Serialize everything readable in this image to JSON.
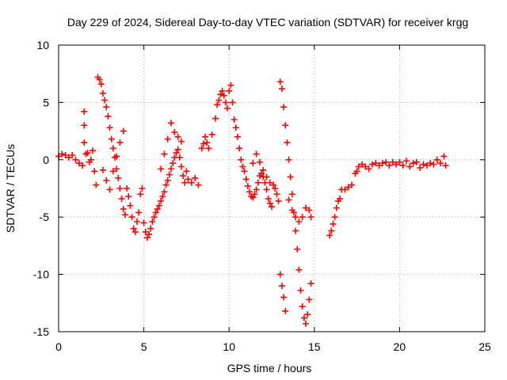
{
  "chart_data": {
    "type": "scatter",
    "title": "Day 229 of 2024, Sidereal Day-to-day VTEC variation (SDTVAR) for receiver krgg",
    "xlabel": "GPS time / hours",
    "ylabel": "SDTVAR / TECUs",
    "xlim": [
      0,
      25
    ],
    "ylim": [
      -15,
      10
    ],
    "xticks": [
      "0",
      "5",
      "10",
      "15",
      "20",
      "25"
    ],
    "yticks": [
      "10",
      "5",
      "0",
      "-5",
      "-10",
      "-15"
    ],
    "grid": true,
    "marker": "+",
    "series": [
      {
        "name": "SDTVAR",
        "color": "#ff0000",
        "points": [
          [
            0.0,
            0.3
          ],
          [
            0.2,
            0.5
          ],
          [
            0.4,
            0.4
          ],
          [
            0.6,
            0.2
          ],
          [
            0.8,
            0.4
          ],
          [
            1.0,
            0.0
          ],
          [
            1.2,
            -0.3
          ],
          [
            1.4,
            -0.5
          ],
          [
            1.5,
            4.2
          ],
          [
            1.5,
            3.0
          ],
          [
            1.5,
            1.5
          ],
          [
            1.6,
            0.5
          ],
          [
            1.7,
            0.6
          ],
          [
            1.8,
            -0.2
          ],
          [
            1.9,
            0.0
          ],
          [
            2.0,
            0.8
          ],
          [
            2.1,
            -1.0
          ],
          [
            2.2,
            -2.2
          ],
          [
            2.3,
            7.2
          ],
          [
            2.4,
            7.0
          ],
          [
            2.5,
            6.6
          ],
          [
            2.6,
            5.8
          ],
          [
            2.7,
            5.2
          ],
          [
            2.8,
            4.6
          ],
          [
            2.9,
            3.8
          ],
          [
            3.0,
            2.8
          ],
          [
            3.1,
            1.8
          ],
          [
            3.2,
            1.0
          ],
          [
            3.3,
            0.2
          ],
          [
            3.4,
            -0.8
          ],
          [
            3.5,
            -1.6
          ],
          [
            3.6,
            -2.5
          ],
          [
            3.7,
            -3.4
          ],
          [
            3.8,
            -4.3
          ],
          [
            3.9,
            -4.8
          ],
          [
            2.6,
            -0.9
          ],
          [
            2.8,
            -1.8
          ],
          [
            3.0,
            -2.6
          ],
          [
            3.2,
            -1.0
          ],
          [
            3.4,
            0.3
          ],
          [
            3.6,
            1.5
          ],
          [
            3.8,
            2.5
          ],
          [
            4.0,
            -2.5
          ],
          [
            4.1,
            -3.2
          ],
          [
            4.2,
            -4.0
          ],
          [
            4.3,
            -5.0
          ],
          [
            4.4,
            -6.0
          ],
          [
            4.5,
            -6.3
          ],
          [
            4.6,
            -5.4
          ],
          [
            4.7,
            -4.6
          ],
          [
            4.8,
            -3.0
          ],
          [
            4.9,
            -2.5
          ],
          [
            5.0,
            -5.5
          ],
          [
            5.1,
            -6.3
          ],
          [
            5.2,
            -6.8
          ],
          [
            5.3,
            -6.5
          ],
          [
            5.4,
            -6.0
          ],
          [
            5.5,
            -5.4
          ],
          [
            5.6,
            -5.0
          ],
          [
            5.7,
            -4.6
          ],
          [
            5.8,
            -4.3
          ],
          [
            5.9,
            -4.0
          ],
          [
            6.0,
            -3.6
          ],
          [
            6.1,
            -3.2
          ],
          [
            6.2,
            -2.8
          ],
          [
            6.3,
            -2.2
          ],
          [
            6.4,
            -1.8
          ],
          [
            6.5,
            -1.3
          ],
          [
            6.6,
            -0.8
          ],
          [
            6.7,
            -0.3
          ],
          [
            6.8,
            0.2
          ],
          [
            6.9,
            0.6
          ],
          [
            7.0,
            0.9
          ],
          [
            7.1,
            0.2
          ],
          [
            7.2,
            -0.6
          ],
          [
            7.3,
            -1.4
          ],
          [
            7.4,
            -2.0
          ],
          [
            6.0,
            -0.8
          ],
          [
            6.2,
            0.5
          ],
          [
            6.4,
            1.8
          ],
          [
            6.6,
            3.2
          ],
          [
            6.8,
            2.4
          ],
          [
            7.0,
            2.0
          ],
          [
            7.2,
            1.6
          ],
          [
            7.5,
            -1.0
          ],
          [
            7.6,
            -1.7
          ],
          [
            7.8,
            -2.0
          ],
          [
            8.0,
            -1.6
          ],
          [
            8.2,
            -2.2
          ],
          [
            8.4,
            1.0
          ],
          [
            8.5,
            1.4
          ],
          [
            8.6,
            2.0
          ],
          [
            8.7,
            1.5
          ],
          [
            8.8,
            1.0
          ],
          [
            9.0,
            2.2
          ],
          [
            9.2,
            3.6
          ],
          [
            9.3,
            4.8
          ],
          [
            9.4,
            5.2
          ],
          [
            9.5,
            5.7
          ],
          [
            9.6,
            6.0
          ],
          [
            9.7,
            5.6
          ],
          [
            9.8,
            5.0
          ],
          [
            9.9,
            4.5
          ],
          [
            10.0,
            6.0
          ],
          [
            10.1,
            6.5
          ],
          [
            10.2,
            5.0
          ],
          [
            10.3,
            3.5
          ],
          [
            10.4,
            2.8
          ],
          [
            10.5,
            2.0
          ],
          [
            10.6,
            1.0
          ],
          [
            10.7,
            0.0
          ],
          [
            10.8,
            -0.6
          ],
          [
            10.9,
            -1.0
          ],
          [
            11.0,
            -1.7
          ],
          [
            11.1,
            -2.3
          ],
          [
            11.2,
            -2.8
          ],
          [
            11.3,
            -3.2
          ],
          [
            11.4,
            -3.3
          ],
          [
            11.5,
            -3.0
          ],
          [
            11.6,
            -2.6
          ],
          [
            11.7,
            -2.0
          ],
          [
            11.8,
            -1.4
          ],
          [
            11.9,
            -1.2
          ],
          [
            12.0,
            -1.5
          ],
          [
            12.1,
            -2.0
          ],
          [
            12.2,
            -2.6
          ],
          [
            12.3,
            -3.4
          ],
          [
            12.4,
            -3.8
          ],
          [
            12.5,
            -4.1
          ],
          [
            11.4,
            -0.3
          ],
          [
            11.6,
            0.5
          ],
          [
            11.8,
            -0.2
          ],
          [
            12.0,
            -0.9
          ],
          [
            12.2,
            -1.5
          ],
          [
            12.4,
            -2.0
          ],
          [
            12.6,
            -2.2
          ],
          [
            12.7,
            -2.5
          ],
          [
            12.8,
            -3.0
          ],
          [
            12.9,
            -3.6
          ],
          [
            13.0,
            6.8
          ],
          [
            13.1,
            6.2
          ],
          [
            13.2,
            4.6
          ],
          [
            13.3,
            3.0
          ],
          [
            13.4,
            1.5
          ],
          [
            13.5,
            0.0
          ],
          [
            13.6,
            -1.5
          ],
          [
            13.7,
            -3.0
          ],
          [
            13.8,
            -4.6
          ],
          [
            13.9,
            -6.2
          ],
          [
            14.0,
            -7.8
          ],
          [
            14.1,
            -9.6
          ],
          [
            14.2,
            -11.4
          ],
          [
            14.3,
            -12.8
          ],
          [
            14.4,
            -13.8
          ],
          [
            14.5,
            -14.3
          ],
          [
            14.6,
            -13.5
          ],
          [
            14.7,
            -12.2
          ],
          [
            14.8,
            -10.8
          ],
          [
            13.0,
            -10.0
          ],
          [
            13.1,
            -11.0
          ],
          [
            13.2,
            -12.0
          ],
          [
            13.3,
            -13.2
          ],
          [
            13.5,
            -3.5
          ],
          [
            13.7,
            -4.4
          ],
          [
            13.9,
            -5.0
          ],
          [
            14.1,
            -5.4
          ],
          [
            14.3,
            -5.0
          ],
          [
            14.5,
            -4.2
          ],
          [
            14.7,
            -4.4
          ],
          [
            14.8,
            -5.0
          ],
          [
            15.9,
            -6.6
          ],
          [
            16.0,
            -6.2
          ],
          [
            16.1,
            -5.6
          ],
          [
            16.2,
            -5.0
          ],
          [
            16.3,
            -4.2
          ],
          [
            16.4,
            -3.6
          ],
          [
            16.5,
            -3.4
          ],
          [
            16.6,
            -2.6
          ],
          [
            16.8,
            -2.6
          ],
          [
            17.0,
            -2.4
          ],
          [
            17.2,
            -2.2
          ],
          [
            17.4,
            -1.2
          ],
          [
            17.5,
            -1.0
          ],
          [
            17.6,
            -0.6
          ],
          [
            17.8,
            -0.4
          ],
          [
            18.0,
            -0.6
          ],
          [
            18.2,
            -0.8
          ],
          [
            18.4,
            -0.4
          ],
          [
            18.6,
            -0.3
          ],
          [
            18.8,
            -0.5
          ],
          [
            19.0,
            -0.3
          ],
          [
            19.2,
            -0.2
          ],
          [
            19.4,
            -0.5
          ],
          [
            19.6,
            -0.2
          ],
          [
            19.8,
            -0.4
          ],
          [
            20.0,
            -0.2
          ],
          [
            20.2,
            -0.5
          ],
          [
            20.4,
            -0.1
          ],
          [
            20.6,
            -0.6
          ],
          [
            20.8,
            -0.3
          ],
          [
            21.0,
            -0.2
          ],
          [
            21.2,
            -0.7
          ],
          [
            21.4,
            -0.4
          ],
          [
            21.6,
            -0.5
          ],
          [
            21.8,
            -0.3
          ],
          [
            22.0,
            -0.4
          ],
          [
            22.2,
            0.0
          ],
          [
            22.4,
            -0.3
          ],
          [
            22.6,
            0.3
          ],
          [
            22.7,
            -0.5
          ]
        ]
      }
    ]
  }
}
